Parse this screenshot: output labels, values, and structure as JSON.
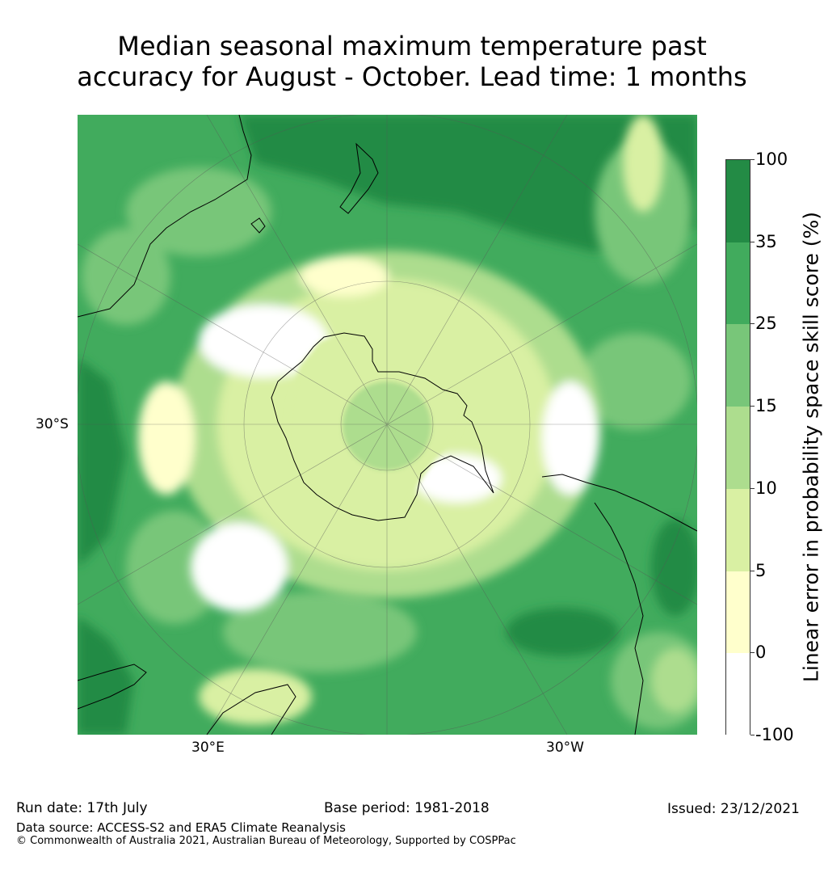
{
  "title_line1": "Median seasonal maximum temperature past",
  "title_line2": "accuracy for August - October. Lead time: 1 months",
  "map": {
    "lat_label": "30°S",
    "lon_labels": [
      "30°E",
      "30°W"
    ],
    "projection": "south-polar-stereographic",
    "palette": [
      "#ffffff",
      "#ffffcc",
      "#d9f0a3",
      "#addd8e",
      "#78c679",
      "#41ab5d",
      "#238b45"
    ]
  },
  "colorbar": {
    "title": "Linear error in probability space skill score (%)",
    "bounds": [
      "100",
      "35",
      "25",
      "15",
      "10",
      "5",
      "0",
      "-100"
    ],
    "colors": [
      "#238b45",
      "#41ab5d",
      "#78c679",
      "#addd8e",
      "#d9f0a3",
      "#ffffcc",
      "#ffffff"
    ]
  },
  "footer": {
    "run_date": "Run date: 17th July",
    "base_period": "Base period: 1981-2018",
    "issued": "Issued: 23/12/2021",
    "data_source": "Data source: ACCESS-S2 and ERA5 Climate Reanalysis",
    "copyright": "© Commonwealth of Australia 2021, Australian Bureau of Meteorology, Supported by COSPPac"
  }
}
